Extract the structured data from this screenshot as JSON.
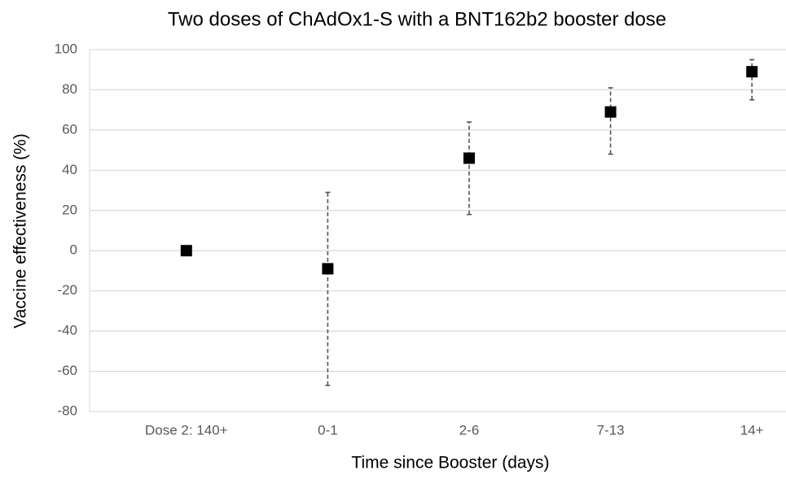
{
  "chart_data": {
    "type": "errorbar",
    "title": "Two doses of ChAdOx1-S with a BNT162b2 booster dose",
    "x_label": "Time since Booster (days)",
    "y_label": "Vaccine effectiveness (%)",
    "categories": [
      "Dose 2: 140+",
      "0-1",
      "2-6",
      "7-13",
      "14+"
    ],
    "values": [
      0,
      -9,
      46,
      69,
      89
    ],
    "ci_lower": [
      null,
      -67,
      18,
      48,
      75
    ],
    "ci_upper": [
      null,
      29,
      64,
      81,
      95
    ],
    "color": "#000000",
    "error_color": "#555555",
    "ylim": [
      -80,
      100
    ],
    "yticks": [
      -80,
      -60,
      -40,
      -20,
      0,
      20,
      40,
      60,
      80,
      100
    ],
    "grid": true
  }
}
